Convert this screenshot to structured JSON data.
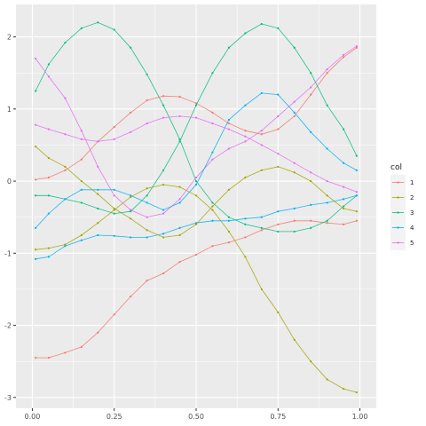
{
  "chart_data": {
    "type": "line",
    "title": "",
    "xlabel": "",
    "ylabel": "",
    "xlim": [
      -0.05,
      1.05
    ],
    "ylim": [
      -3.15,
      2.45
    ],
    "xticks": [
      0.0,
      0.25,
      0.5,
      0.75,
      1.0
    ],
    "xtick_labels": [
      "0.00",
      "0.25",
      "0.50",
      "0.75",
      "1.00"
    ],
    "yticks": [
      2,
      1,
      0,
      -1,
      -2,
      -3
    ],
    "ytick_labels": [
      "2",
      "1",
      "0",
      "-1",
      "-2",
      "-3"
    ],
    "grid": true,
    "legend": {
      "title": "col",
      "position": "right",
      "entries": [
        "1",
        "2",
        "3",
        "4",
        "5"
      ]
    },
    "colors": {
      "panel_background": "#ebebeb",
      "gridline": "#ffffff",
      "series": [
        "#f8766d",
        "#a3a500",
        "#00bf7d",
        "#00b0f6",
        "#e76bf3"
      ]
    },
    "series": [
      {
        "name": "1",
        "x": [
          0.01,
          0.05,
          0.1,
          0.15,
          0.2,
          0.25,
          0.3,
          0.35,
          0.4,
          0.45,
          0.5,
          0.55,
          0.6,
          0.65,
          0.7,
          0.75,
          0.8,
          0.85,
          0.9,
          0.95,
          0.99
        ],
        "y": [
          -2.45,
          -2.45,
          -2.38,
          -2.3,
          -2.1,
          -1.85,
          -1.6,
          -1.38,
          -1.28,
          -1.12,
          -1.02,
          -0.9,
          -0.85,
          -0.78,
          -0.68,
          -0.6,
          -0.55,
          -0.55,
          -0.58,
          -0.6,
          -0.55
        ]
      },
      {
        "name": "2",
        "x": [
          0.01,
          0.05,
          0.1,
          0.15,
          0.2,
          0.25,
          0.3,
          0.35,
          0.4,
          0.45,
          0.5,
          0.55,
          0.6,
          0.65,
          0.7,
          0.75,
          0.8,
          0.85,
          0.9,
          0.95,
          0.99
        ],
        "y": [
          -0.95,
          -0.93,
          -0.88,
          -0.75,
          -0.58,
          -0.4,
          -0.22,
          -0.1,
          -0.05,
          -0.08,
          -0.2,
          -0.4,
          -0.7,
          -1.05,
          -1.5,
          -1.82,
          -2.2,
          -2.5,
          -2.75,
          -2.88,
          -2.93
        ]
      },
      {
        "name": "3",
        "x": [
          0.01,
          0.05,
          0.1,
          0.15,
          0.2,
          0.25,
          0.3,
          0.35,
          0.4,
          0.45,
          0.5,
          0.55,
          0.6,
          0.65,
          0.7,
          0.75,
          0.8,
          0.85,
          0.9,
          0.95,
          0.99
        ],
        "y": [
          1.25,
          1.62,
          1.92,
          2.12,
          2.2,
          2.1,
          1.85,
          1.48,
          1.05,
          0.58,
          0.0,
          -0.3,
          -0.5,
          -0.6,
          -0.65,
          -0.7,
          -0.7,
          -0.65,
          -0.55,
          -0.35,
          -0.2
        ]
      },
      {
        "name": "4",
        "x": [
          0.01,
          0.05,
          0.1,
          0.15,
          0.2,
          0.25,
          0.3,
          0.35,
          0.4,
          0.45,
          0.5,
          0.55,
          0.6,
          0.65,
          0.7,
          0.75,
          0.8,
          0.85,
          0.9,
          0.95,
          0.99
        ],
        "y": [
          -1.08,
          -1.05,
          -0.9,
          -0.82,
          -0.75,
          -0.76,
          -0.78,
          -0.78,
          -0.73,
          -0.65,
          -0.58,
          -0.55,
          -0.55,
          -0.52,
          -0.5,
          -0.42,
          -0.38,
          -0.33,
          -0.3,
          -0.25,
          -0.2
        ]
      },
      {
        "name": "5",
        "x": [
          0.01,
          0.05,
          0.1,
          0.15,
          0.2,
          0.25,
          0.3,
          0.35,
          0.4,
          0.45,
          0.5,
          0.55,
          0.6,
          0.65,
          0.7,
          0.75,
          0.8,
          0.85,
          0.9,
          0.95,
          0.99
        ],
        "y": [
          1.7,
          1.45,
          1.15,
          0.7,
          0.2,
          -0.2,
          -0.4,
          -0.5,
          -0.45,
          -0.25,
          0.05,
          0.3,
          0.45,
          0.55,
          0.7,
          0.9,
          1.1,
          1.3,
          1.55,
          1.75,
          1.87
        ]
      },
      {
        "name": "1",
        "x": [
          0.01,
          0.05,
          0.1,
          0.15,
          0.2,
          0.25,
          0.3,
          0.35,
          0.4,
          0.45,
          0.5,
          0.55,
          0.6,
          0.65,
          0.7,
          0.75,
          0.8,
          0.85,
          0.9,
          0.95,
          0.99
        ],
        "y": [
          0.02,
          0.05,
          0.15,
          0.3,
          0.55,
          0.75,
          0.95,
          1.12,
          1.18,
          1.17,
          1.08,
          0.95,
          0.8,
          0.7,
          0.65,
          0.72,
          0.9,
          1.2,
          1.5,
          1.72,
          1.85
        ]
      },
      {
        "name": "2",
        "x": [
          0.01,
          0.05,
          0.1,
          0.15,
          0.2,
          0.25,
          0.3,
          0.35,
          0.4,
          0.45,
          0.5,
          0.55,
          0.6,
          0.65,
          0.7,
          0.75,
          0.8,
          0.85,
          0.9,
          0.95,
          0.99
        ],
        "y": [
          0.48,
          0.32,
          0.2,
          0.0,
          -0.18,
          -0.38,
          -0.52,
          -0.68,
          -0.78,
          -0.75,
          -0.6,
          -0.35,
          -0.12,
          0.05,
          0.15,
          0.2,
          0.12,
          0.0,
          -0.2,
          -0.38,
          -0.42
        ]
      },
      {
        "name": "3",
        "x": [
          0.01,
          0.05,
          0.1,
          0.15,
          0.2,
          0.25,
          0.3,
          0.35,
          0.4,
          0.45,
          0.5,
          0.55,
          0.6,
          0.65,
          0.7,
          0.75,
          0.8,
          0.85,
          0.9,
          0.95,
          0.99
        ],
        "y": [
          -0.2,
          -0.2,
          -0.25,
          -0.3,
          -0.38,
          -0.45,
          -0.42,
          -0.2,
          0.15,
          0.55,
          1.05,
          1.5,
          1.85,
          2.05,
          2.18,
          2.12,
          1.85,
          1.5,
          1.05,
          0.72,
          0.35
        ]
      },
      {
        "name": "4",
        "x": [
          0.01,
          0.05,
          0.1,
          0.15,
          0.2,
          0.25,
          0.3,
          0.35,
          0.4,
          0.45,
          0.5,
          0.55,
          0.6,
          0.65,
          0.7,
          0.75,
          0.8,
          0.85,
          0.9,
          0.95,
          0.99
        ],
        "y": [
          -0.65,
          -0.45,
          -0.25,
          -0.12,
          -0.12,
          -0.12,
          -0.2,
          -0.3,
          -0.4,
          -0.3,
          -0.05,
          0.4,
          0.85,
          1.05,
          1.22,
          1.2,
          0.95,
          0.68,
          0.45,
          0.25,
          0.15
        ]
      },
      {
        "name": "5",
        "x": [
          0.01,
          0.05,
          0.1,
          0.15,
          0.2,
          0.25,
          0.3,
          0.35,
          0.4,
          0.45,
          0.5,
          0.55,
          0.6,
          0.65,
          0.7,
          0.75,
          0.8,
          0.85,
          0.9,
          0.95,
          0.99
        ],
        "y": [
          0.78,
          0.72,
          0.65,
          0.58,
          0.55,
          0.58,
          0.68,
          0.8,
          0.88,
          0.9,
          0.88,
          0.8,
          0.72,
          0.62,
          0.5,
          0.38,
          0.25,
          0.12,
          0.0,
          -0.08,
          -0.15
        ]
      }
    ]
  }
}
